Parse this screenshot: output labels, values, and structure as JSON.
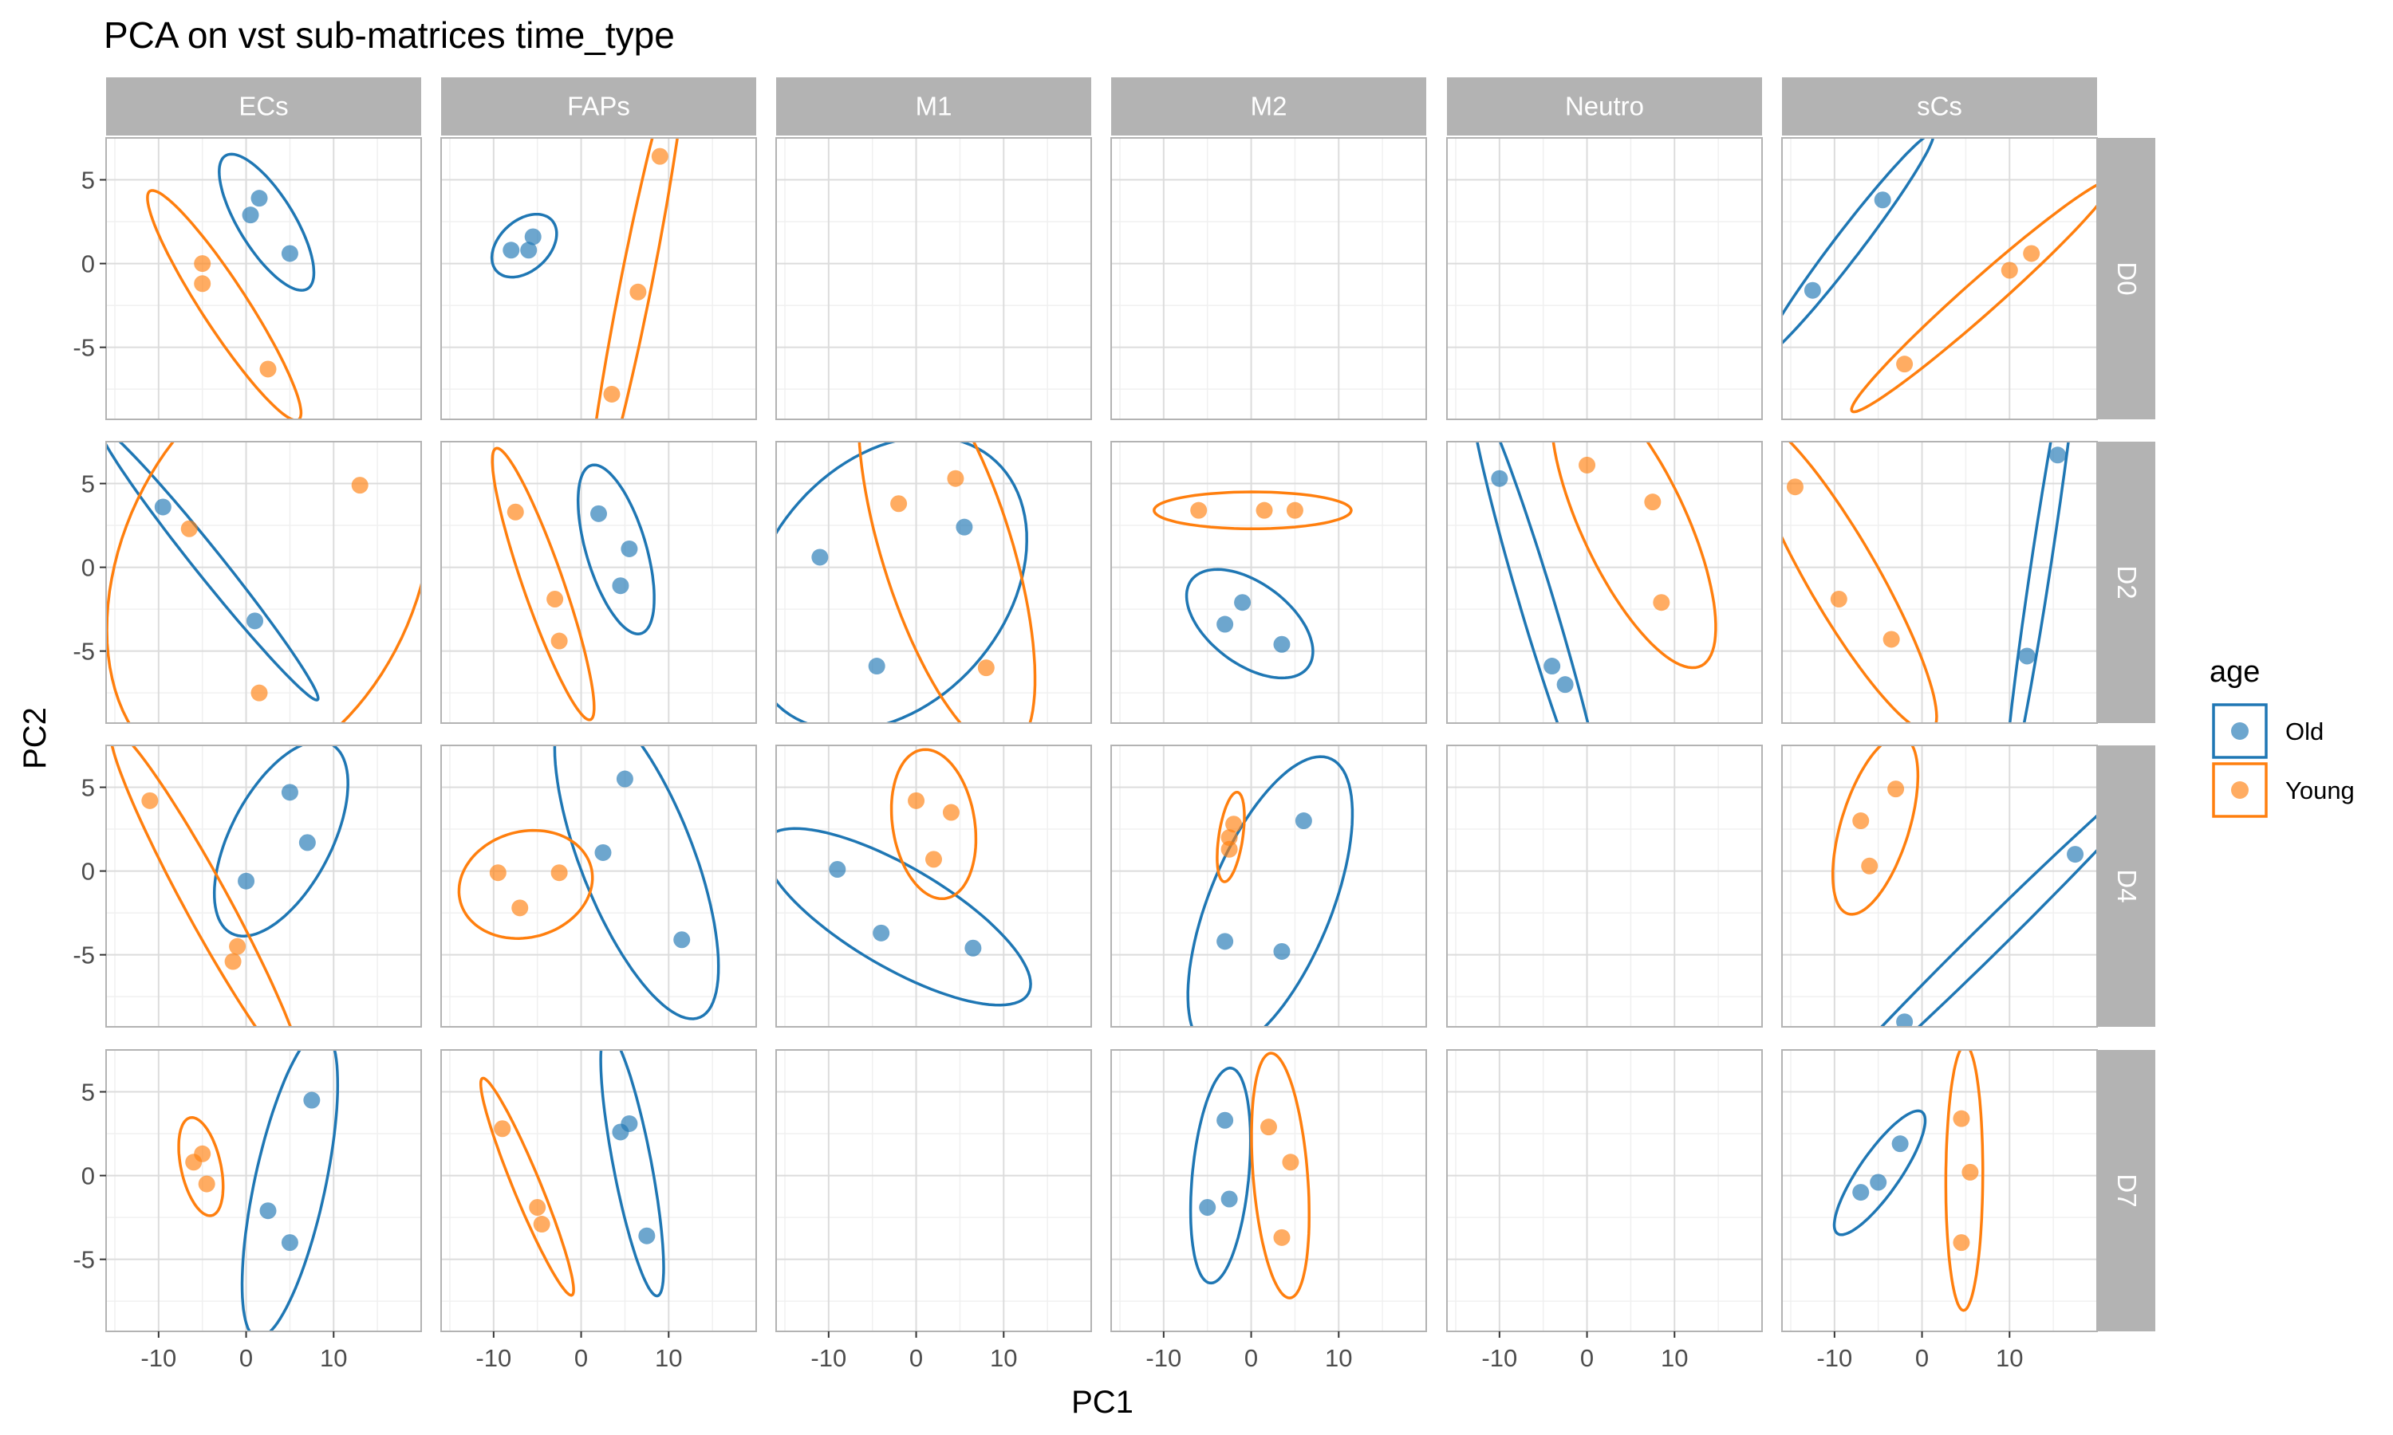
{
  "chart_data": {
    "type": "scatter",
    "title": "PCA on vst sub-matrices time_type",
    "xlabel": "PC1",
    "ylabel": "PC2",
    "xlim": [
      -16,
      20
    ],
    "ylim": [
      -9.3,
      7.5
    ],
    "x_ticks": [
      -10,
      0,
      10
    ],
    "x_tick_labels": [
      "-10",
      "0",
      "10"
    ],
    "y_ticks": [
      5,
      0,
      -5
    ],
    "y_tick_labels": [
      "5",
      "0",
      "-5"
    ],
    "columns": [
      "ECs",
      "FAPs",
      "M1",
      "M2",
      "Neutro",
      "sCs"
    ],
    "rows": [
      "D0",
      "D2",
      "D4",
      "D7"
    ],
    "legend": {
      "title": "age",
      "placement": "right",
      "entries": [
        {
          "name": "Old",
          "color": "#1f77b4"
        },
        {
          "name": "Young",
          "color": "#ff7f0e"
        }
      ]
    },
    "grid": true,
    "ellipses": true,
    "panels": [
      {
        "col": "ECs",
        "row": "D0",
        "Old": [
          [
            0.5,
            2.9
          ],
          [
            1.5,
            3.9
          ],
          [
            5,
            0.6
          ]
        ],
        "Young": [
          [
            -5,
            0
          ],
          [
            -5,
            -1.2
          ],
          [
            2.5,
            -6.3
          ]
        ]
      },
      {
        "col": "FAPs",
        "row": "D0",
        "Old": [
          [
            -8,
            0.8
          ],
          [
            -6,
            0.8
          ],
          [
            -5.5,
            1.6
          ]
        ],
        "Young": [
          [
            9,
            6.4
          ],
          [
            6.5,
            -1.7
          ],
          [
            3.5,
            -7.8
          ]
        ]
      },
      {
        "col": "M1",
        "row": "D0",
        "Old": [],
        "Young": []
      },
      {
        "col": "M2",
        "row": "D0",
        "Old": [],
        "Young": []
      },
      {
        "col": "Neutro",
        "row": "D0",
        "Old": [],
        "Young": []
      },
      {
        "col": "sCs",
        "row": "D0",
        "Old": [
          [
            -4.5,
            3.8
          ],
          [
            -12.5,
            -1.6
          ]
        ],
        "Young": [
          [
            12.5,
            0.6
          ],
          [
            10,
            -0.4
          ],
          [
            -2,
            -6
          ]
        ]
      },
      {
        "col": "ECs",
        "row": "D2",
        "Old": [
          [
            -9.5,
            3.6
          ],
          [
            1,
            -3.2
          ]
        ],
        "Young": [
          [
            -6.5,
            2.3
          ],
          [
            13,
            4.9
          ],
          [
            1.5,
            -7.5
          ]
        ]
      },
      {
        "col": "FAPs",
        "row": "D2",
        "Old": [
          [
            2,
            3.2
          ],
          [
            5.5,
            1.1
          ],
          [
            4.5,
            -1.1
          ]
        ],
        "Young": [
          [
            -7.5,
            3.3
          ],
          [
            -3,
            -1.9
          ],
          [
            -2.5,
            -4.4
          ]
        ]
      },
      {
        "col": "M1",
        "row": "D2",
        "Old": [
          [
            -11,
            0.6
          ],
          [
            5.5,
            2.4
          ],
          [
            -4.5,
            -5.9
          ]
        ],
        "Young": [
          [
            -2,
            3.8
          ],
          [
            4.5,
            5.3
          ],
          [
            8,
            -6
          ]
        ]
      },
      {
        "col": "M2",
        "row": "D2",
        "Old": [
          [
            -1,
            -2.1
          ],
          [
            -3,
            -3.4
          ],
          [
            3.5,
            -4.6
          ]
        ],
        "Young": [
          [
            -6,
            3.4
          ],
          [
            1.5,
            3.4
          ],
          [
            5,
            3.4
          ]
        ]
      },
      {
        "col": "Neutro",
        "row": "D2",
        "Old": [
          [
            -10,
            5.3
          ],
          [
            -4,
            -5.9
          ],
          [
            -2.5,
            -7
          ]
        ],
        "Young": [
          [
            0,
            6.1
          ],
          [
            7.5,
            3.9
          ],
          [
            8.5,
            -2.1
          ]
        ]
      },
      {
        "col": "sCs",
        "row": "D2",
        "Old": [
          [
            15.5,
            6.7
          ],
          [
            12,
            -5.3
          ]
        ],
        "Young": [
          [
            -14.5,
            4.8
          ],
          [
            -9.5,
            -1.9
          ],
          [
            -3.5,
            -4.3
          ]
        ]
      },
      {
        "col": "ECs",
        "row": "D4",
        "Old": [
          [
            5,
            4.7
          ],
          [
            7,
            1.7
          ],
          [
            0,
            -0.6
          ]
        ],
        "Young": [
          [
            -11,
            4.2
          ],
          [
            -1,
            -4.5
          ],
          [
            -1.5,
            -5.4
          ]
        ]
      },
      {
        "col": "FAPs",
        "row": "D4",
        "Old": [
          [
            5,
            5.5
          ],
          [
            2.5,
            1.1
          ],
          [
            11.5,
            -4.1
          ]
        ],
        "Young": [
          [
            -9.5,
            -0.1
          ],
          [
            -2.5,
            -0.1
          ],
          [
            -7,
            -2.2
          ]
        ]
      },
      {
        "col": "M1",
        "row": "D4",
        "Old": [
          [
            -9,
            0.1
          ],
          [
            -4,
            -3.7
          ],
          [
            6.5,
            -4.6
          ]
        ],
        "Young": [
          [
            0,
            4.2
          ],
          [
            4,
            3.5
          ],
          [
            2,
            0.7
          ]
        ]
      },
      {
        "col": "M2",
        "row": "D4",
        "Old": [
          [
            6,
            3
          ],
          [
            -3,
            -4.2
          ],
          [
            3.5,
            -4.8
          ]
        ],
        "Young": [
          [
            -2,
            2.8
          ],
          [
            -2.5,
            2
          ],
          [
            -2.5,
            1.3
          ]
        ]
      },
      {
        "col": "Neutro",
        "row": "D4",
        "Old": [],
        "Young": []
      },
      {
        "col": "sCs",
        "row": "D4",
        "Old": [
          [
            17.5,
            1
          ],
          [
            -2,
            -9
          ]
        ],
        "Young": [
          [
            -3,
            4.9
          ],
          [
            -7,
            3
          ],
          [
            -6,
            0.3
          ]
        ]
      },
      {
        "col": "ECs",
        "row": "D7",
        "Old": [
          [
            7.5,
            4.5
          ],
          [
            2.5,
            -2.1
          ],
          [
            5,
            -4
          ]
        ],
        "Young": [
          [
            -6,
            0.8
          ],
          [
            -5,
            1.3
          ],
          [
            -4.5,
            -0.5
          ]
        ]
      },
      {
        "col": "FAPs",
        "row": "D7",
        "Old": [
          [
            5.5,
            3.1
          ],
          [
            4.5,
            2.6
          ],
          [
            7.5,
            -3.6
          ]
        ],
        "Young": [
          [
            -9,
            2.8
          ],
          [
            -5,
            -1.9
          ],
          [
            -4.5,
            -2.9
          ]
        ]
      },
      {
        "col": "M1",
        "row": "D7",
        "Old": [],
        "Young": []
      },
      {
        "col": "M2",
        "row": "D7",
        "Old": [
          [
            -3,
            3.3
          ],
          [
            -2.5,
            -1.4
          ],
          [
            -5,
            -1.9
          ]
        ],
        "Young": [
          [
            2,
            2.9
          ],
          [
            4.5,
            0.8
          ],
          [
            3.5,
            -3.7
          ]
        ]
      },
      {
        "col": "Neutro",
        "row": "D7",
        "Old": [],
        "Young": []
      },
      {
        "col": "sCs",
        "row": "D7",
        "Old": [
          [
            -2.5,
            1.9
          ],
          [
            -5,
            -0.4
          ],
          [
            -7,
            -1
          ]
        ],
        "Young": [
          [
            4.5,
            3.4
          ],
          [
            5.5,
            0.2
          ],
          [
            4.5,
            -4
          ]
        ]
      }
    ]
  }
}
